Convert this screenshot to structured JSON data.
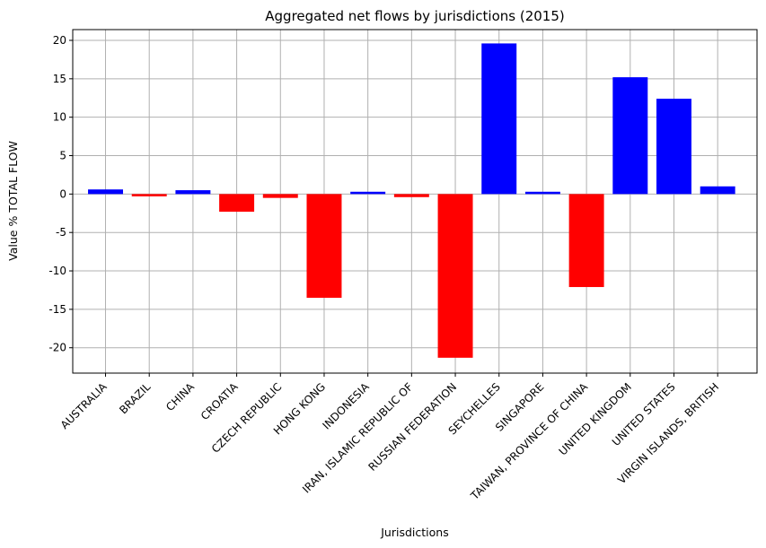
{
  "chart_data": {
    "type": "bar",
    "title": "Aggregated net flows by jurisdictions (2015)",
    "xlabel": "Jurisdictions",
    "ylabel": "Value % TOTAL FLOW",
    "categories": [
      "AUSTRALIA",
      "BRAZIL",
      "CHINA",
      "CROATIA",
      "CZECH REPUBLIC",
      "HONG KONG",
      "INDONESIA",
      "IRAN, ISLAMIC REPUBLIC OF",
      "RUSSIAN FEDERATION",
      "SEYCHELLES",
      "SINGAPORE",
      "TAIWAN, PROVINCE OF CHINA",
      "UNITED KINGDOM",
      "UNITED STATES",
      "VIRGIN ISLANDS, BRITISH"
    ],
    "values": [
      0.6,
      -0.3,
      0.5,
      -2.3,
      -0.5,
      -13.5,
      0.3,
      -0.4,
      -21.3,
      19.6,
      0.3,
      -12.1,
      15.2,
      12.4,
      1.0
    ],
    "ylim": [
      -23.3,
      21.4
    ],
    "yticks": [
      -20,
      -15,
      -10,
      -5,
      0,
      5,
      10,
      15,
      20
    ],
    "grid": true,
    "colors": {
      "positive": "#0000ff",
      "negative": "#ff0000",
      "grid": "#b0b0b0"
    }
  }
}
